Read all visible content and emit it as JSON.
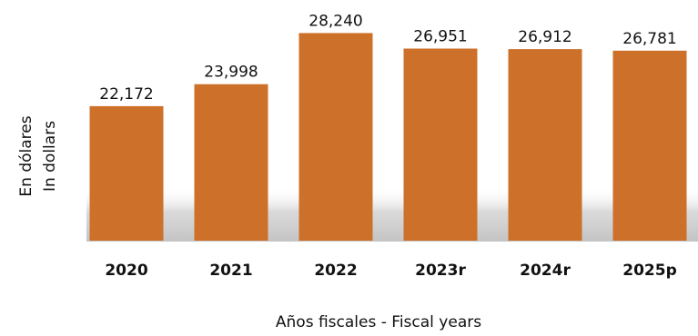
{
  "chart_data": {
    "type": "bar",
    "categories": [
      "2020",
      "2021",
      "2022",
      "2023r",
      "2024r",
      "2025p"
    ],
    "values": [
      22172,
      23998,
      28240,
      26951,
      26912,
      26781
    ],
    "value_labels": [
      "22,172",
      "23,998",
      "28,240",
      "26,951",
      "26,912",
      "26,781"
    ],
    "xlabel": "Años fiscales - Fiscal years",
    "ylabel_lines": [
      "En dólares",
      "In dollars"
    ],
    "ylim": [
      11000,
      28500
    ],
    "grid": false,
    "legend": "none",
    "bar_color": "#CD7029",
    "shadow_color": "#C8C8C8"
  }
}
